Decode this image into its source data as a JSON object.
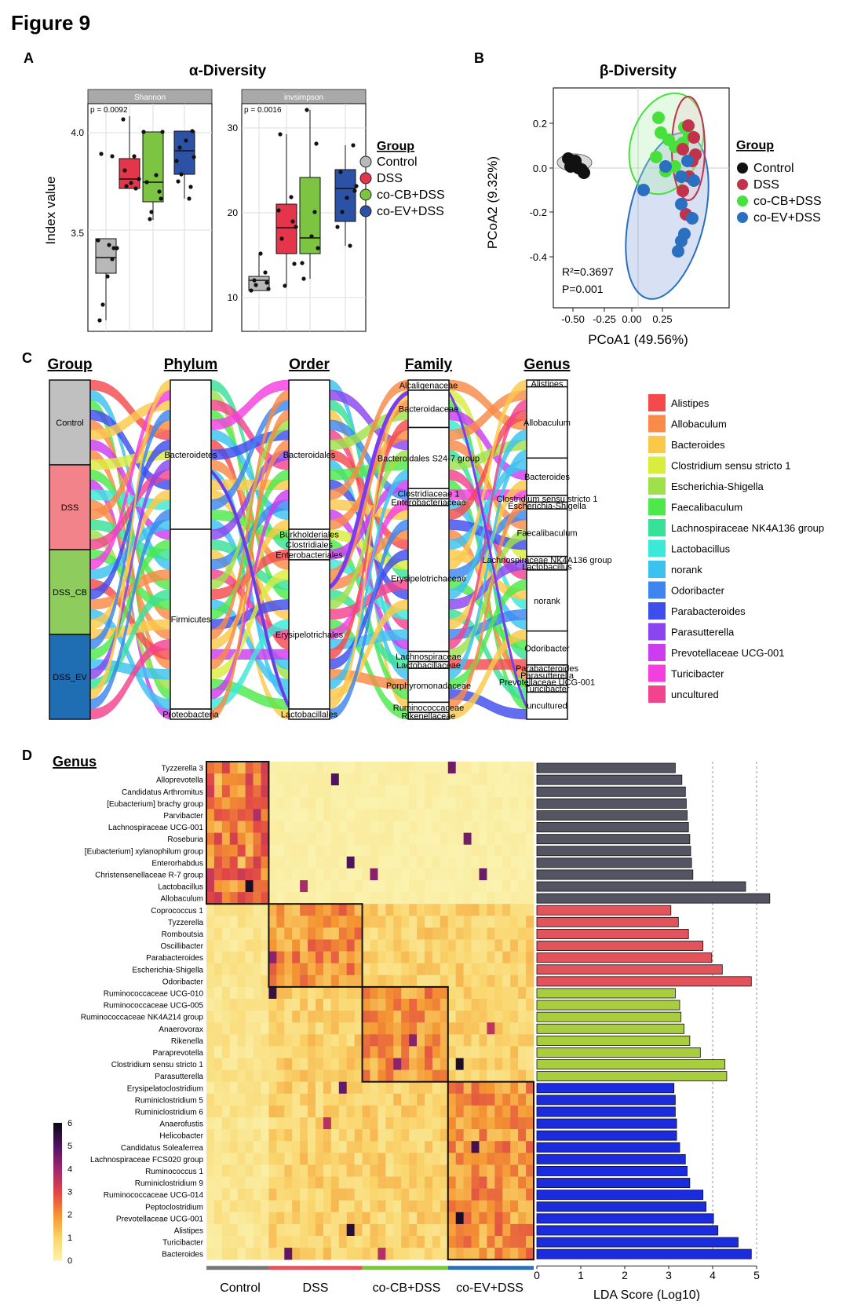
{
  "figure_title": "Figure 9",
  "colors": {
    "control": "#b8b8b8",
    "dss": "#e4354a",
    "cocb": "#7cc441",
    "coev": "#2c52a5",
    "beta_control": "#111111",
    "beta_dss": "#c0334a",
    "beta_cocb": "#48e03c",
    "beta_coev": "#2a6fc0",
    "lda_control": "#545462",
    "lda_dss": "#e3535c",
    "lda_cocb": "#a8cd3d",
    "lda_coev": "#1b2bde"
  },
  "panelA": {
    "label": "A",
    "title": "α-Diversity",
    "ylabel": "Index value",
    "shannon": {
      "facet": "Shannon",
      "pval": "p = 0.0092",
      "ticks": [
        "3.5",
        "4.0"
      ]
    },
    "invsimpson": {
      "facet": "invsimpson",
      "pval": "p = 0.0016",
      "ticks": [
        "10",
        "20",
        "30"
      ]
    },
    "legend_title": "Group",
    "legend": [
      "Control",
      "DSS",
      "co-CB+DSS",
      "co-EV+DSS"
    ]
  },
  "panelB": {
    "label": "B",
    "title": "β-Diversity",
    "xlabel": "PCoA1 (49.56%)",
    "ylabel": "PCoA2 (9.32%)",
    "xticks": [
      "-0.50",
      "-0.25",
      "0.00",
      "0.25"
    ],
    "yticks": [
      "0.2",
      "0.0",
      "-0.2",
      "-0.4"
    ],
    "r2": "R²=0.3697",
    "pval": "P=0.001",
    "legend_title": "Group",
    "legend": [
      "Control",
      "DSS",
      "co-CB+DSS",
      "co-EV+DSS"
    ]
  },
  "panelC": {
    "label": "C",
    "col_titles": [
      "Group",
      "Phylum",
      "Order",
      "Family",
      "Genus"
    ],
    "group_labels": [
      "Control",
      "DSS",
      "DSS_CB",
      "DSS_EV"
    ],
    "phylum_labels": [
      "Bacteroidetes",
      "Firmicutes",
      "Proteobacteria"
    ],
    "order_labels": [
      "Bacteroidales",
      "Burkholderiales",
      "Clostridiales",
      "Enterobacteriales",
      "Erysipelotrichales",
      "Lactobacillales"
    ],
    "family_labels": [
      "Alcaligenaceae",
      "Bacteroidaceae",
      "Bacteroidales S24-7 group",
      "Clostridiaceae 1",
      "Enterobacteriaceae",
      "Erysipelotrichaceae",
      "Lachnospiraceae",
      "Lactobacillaceae",
      "Porphyromonadaceae",
      "Ruminococcaceae",
      "Rikenellaceae"
    ],
    "genus_labels": [
      "Alistipes",
      "Allobaculum",
      "Bacteroides",
      "Clostridium sensu stricto 1",
      "Escherichia-Shigella",
      "Faecalibaculum",
      "Lachnospiraceae NK4A136 group",
      "Lactobacillus",
      "norank",
      "Odoribacter",
      "Parabacteroides",
      "Parasutterella",
      "Prevotellaceae UCG-001",
      "Turicibacter",
      "uncultured"
    ],
    "legend": [
      {
        "name": "Alistipes",
        "color": "#f44a4e"
      },
      {
        "name": "Allobaculum",
        "color": "#f98a47"
      },
      {
        "name": "Bacteroides",
        "color": "#fbc84a"
      },
      {
        "name": "Clostridium sensu stricto 1",
        "color": "#d9ed3e"
      },
      {
        "name": "Escherichia-Shigella",
        "color": "#9fe04b"
      },
      {
        "name": "Faecalibaculum",
        "color": "#4ee84b"
      },
      {
        "name": "Lachnospiraceae NK4A136 group",
        "color": "#39e097"
      },
      {
        "name": "Lactobacillus",
        "color": "#3ce8d8"
      },
      {
        "name": "norank",
        "color": "#3cc2ef"
      },
      {
        "name": "Odoribacter",
        "color": "#3d86ef"
      },
      {
        "name": "Parabacteroides",
        "color": "#3f4ded"
      },
      {
        "name": "Parasutterella",
        "color": "#8a45ef"
      },
      {
        "name": "Prevotellaceae UCG-001",
        "color": "#cc3df0"
      },
      {
        "name": "Turicibacter",
        "color": "#f43ee0"
      },
      {
        "name": "uncultured",
        "color": "#f2438e"
      }
    ]
  },
  "panelD": {
    "label": "D",
    "section_title": "Genus",
    "genera": [
      "Tyzzerella 3",
      "Alloprevotella",
      "Candidatus Arthromitus",
      "[Eubacterium] brachy group",
      "Parvibacter",
      "Lachnospiraceae UCG-001",
      "Roseburia",
      "[Eubacterium] xylanophilum group",
      "Enterorhabdus",
      "Christensenellaceae R-7 group",
      "Lactobacillus",
      "Allobaculum",
      "Coprococcus 1",
      "Tyzzerella",
      "Romboutsia",
      "Oscillibacter",
      "Parabacteroides",
      "Escherichia-Shigella",
      "Odoribacter",
      "Ruminococcaceae UCG-010",
      "Ruminococcaceae UCG-005",
      "Ruminococcaceae NK4A214 group",
      "Anaerovorax",
      "Rikenella",
      "Paraprevotella",
      "Clostridium sensu stricto 1",
      "Parasutterella",
      "Erysipelatoclostridium",
      "Ruminiclostridium 5",
      "Ruminiclostridium 6",
      "Anaerofustis",
      "Helicobacter",
      "Candidatus Soleaferrea",
      "Lachnospiraceae FCS020 group",
      "Ruminococcus 1",
      "Ruminiclostridium 9",
      "Ruminococcaceae UCG-014",
      "Peptoclostridium",
      "Prevotellaceae UCG-001",
      "Alistipes",
      "Turicibacter",
      "Bacteroides"
    ],
    "lda_scores": [
      3.15,
      3.3,
      3.38,
      3.4,
      3.42,
      3.45,
      3.48,
      3.5,
      3.52,
      3.55,
      4.75,
      5.3,
      3.05,
      3.22,
      3.45,
      3.78,
      3.98,
      4.22,
      4.88,
      3.15,
      3.25,
      3.28,
      3.35,
      3.48,
      3.72,
      4.28,
      4.32,
      3.12,
      3.15,
      3.15,
      3.18,
      3.18,
      3.25,
      3.38,
      3.42,
      3.48,
      3.78,
      3.85,
      4.02,
      4.12,
      4.58,
      4.88
    ],
    "group_counts": [
      12,
      7,
      8,
      15
    ],
    "x_groups": [
      "Control",
      "DSS",
      "co-CB+DSS",
      "co-EV+DSS"
    ],
    "colorbar_ticks": [
      "0",
      "1",
      "2",
      "3",
      "4",
      "5",
      "6"
    ],
    "lda_ticks": [
      "0",
      "1",
      "2",
      "3",
      "4",
      "5"
    ],
    "lda_xlabel": "LDA Score (Log10)"
  }
}
